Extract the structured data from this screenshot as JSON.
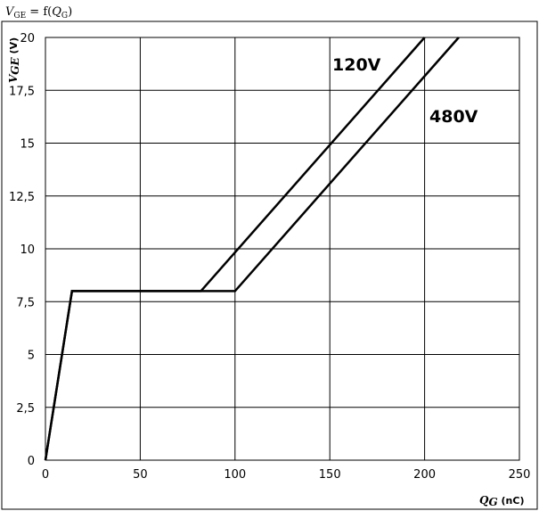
{
  "chart_data": {
    "type": "line",
    "title": {
      "base": "V",
      "sub": "GE",
      "mid": " = f(",
      "base2": "Q",
      "sub2": "G",
      "end": ")"
    },
    "xlabel": {
      "symbol": "Q",
      "sub": "G",
      "unit": " (nC)"
    },
    "ylabel": {
      "symbol": "V",
      "sub": "GE",
      "unit": " (V)"
    },
    "xlim": [
      0,
      250
    ],
    "ylim": [
      0,
      20
    ],
    "x_ticks": [
      0,
      50,
      100,
      150,
      200,
      250
    ],
    "x_tick_labels": [
      "0",
      "50",
      "100",
      "150",
      "200",
      "250"
    ],
    "y_ticks": [
      0,
      2.5,
      5,
      7.5,
      10,
      12.5,
      15,
      17.5,
      20
    ],
    "y_tick_labels": [
      "0",
      "2,5",
      "5",
      "7,5",
      "10",
      "12,5",
      "15",
      "17,5",
      "20"
    ],
    "grid": true,
    "series": [
      {
        "name": "120V",
        "x": [
          0,
          14,
          82,
          200
        ],
        "y": [
          0,
          8,
          8,
          20
        ]
      },
      {
        "name": "480V",
        "x": [
          0,
          14,
          100,
          218
        ],
        "y": [
          0,
          8,
          8,
          20
        ]
      }
    ]
  }
}
